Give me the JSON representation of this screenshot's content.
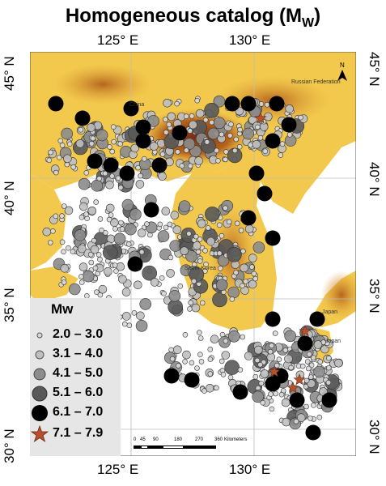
{
  "title": {
    "main": "Homogeneous catalog (M",
    "sub": "W",
    "close": ")"
  },
  "lon_ticks_top": [
    "125° E",
    "130° E"
  ],
  "lon_ticks_bottom": [
    "125° E",
    "130° E"
  ],
  "lat_ticks": [
    "45° N",
    "40° N",
    "35° N",
    "30° N"
  ],
  "place_labels": {
    "china": "China",
    "russia": "Russian Federation",
    "korea": "South Korea",
    "japan1": "Japan",
    "japan2": "Japan"
  },
  "north_arrow": "N",
  "scalebar": {
    "numbers": [
      "0",
      "45",
      "90",
      "180",
      "270",
      "360"
    ],
    "unit": "Kilometers"
  },
  "legend": {
    "title": "Mw",
    "items": [
      {
        "label": "2.0 – 3.0",
        "fill": "#d9d9d9",
        "r": 3
      },
      {
        "label": "3.1 – 4.0",
        "fill": "#bfbfbf",
        "r": 5
      },
      {
        "label": "4.1 – 5.0",
        "fill": "#8c8c8c",
        "r": 7
      },
      {
        "label": "5.1 – 6.0",
        "fill": "#595959",
        "r": 9
      },
      {
        "label": "6.1 – 7.0",
        "fill": "#000000",
        "r": 10
      },
      {
        "label": "7.1 – 7.9",
        "fill": "#b5512d",
        "shape": "star"
      }
    ]
  },
  "colors": {
    "land_low": "#f2c94c",
    "land_mid": "#e0a23a",
    "land_high": "#b5651d",
    "land_peak": "#7a2a10",
    "sea": "#ffffff",
    "star": "#b5512d"
  }
}
